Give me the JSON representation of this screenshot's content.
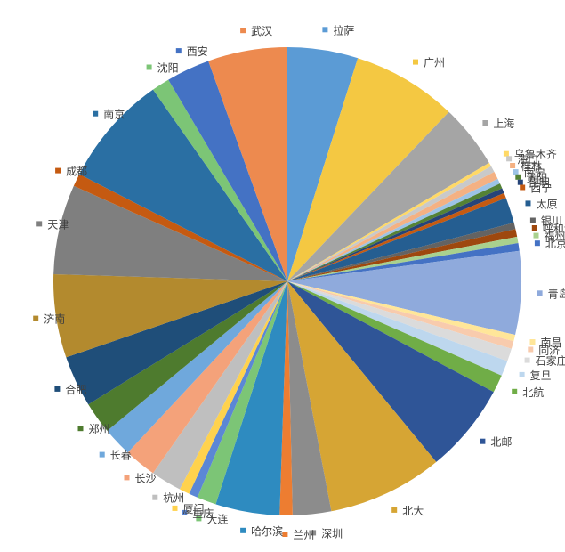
{
  "chart_data": {
    "type": "pie",
    "title": "",
    "legend": "labels-around-pie",
    "categories": [
      "拉萨",
      "广州",
      "上海",
      "乌鲁木齐",
      "海口",
      "桂林",
      "南宁",
      "贵阳",
      "昆明",
      "西宁",
      "太原",
      "银川",
      "呼和浩特",
      "福州",
      "北京",
      "青岛",
      "南昌",
      "同济",
      "石家庄",
      "复旦",
      "北航",
      "北邮",
      "北大",
      "深圳",
      "兰州",
      "哈尔滨",
      "大连",
      "重庆",
      "厦门",
      "杭州",
      "长沙",
      "长春",
      "郑州",
      "合肥",
      "济南",
      "天津",
      "成都",
      "南京",
      "沈阳",
      "西安",
      "武汉"
    ],
    "values": [
      5.5,
      8.2,
      5.0,
      0.3,
      0.5,
      0.6,
      0.4,
      0.4,
      0.4,
      0.4,
      2.0,
      0.5,
      0.6,
      0.5,
      0.6,
      6.5,
      0.5,
      0.6,
      1.0,
      1.2,
      1.4,
      7.0,
      9.0,
      3.0,
      1.0,
      5.0,
      1.5,
      0.7,
      0.8,
      2.4,
      2.5,
      2.3,
      2.5,
      4.0,
      6.5,
      7.0,
      1.0,
      8.7,
      1.4,
      3.4,
      6.2
    ],
    "colors": [
      "#5B9BD5",
      "#F4C842",
      "#A5A5A5",
      "#FFD966",
      "#C9C9C9",
      "#F4B183",
      "#9DC3E6",
      "#548235",
      "#264478",
      "#C55A11",
      "#255E91",
      "#636363",
      "#9E480E",
      "#A9D18E",
      "#4472C4",
      "#8FAADC",
      "#FFE699",
      "#F8CBAD",
      "#DBDBDB",
      "#BDD7EE",
      "#70AD47",
      "#2F5597",
      "#D6A534",
      "#8C8C8C",
      "#ED7D31",
      "#2E8BC0",
      "#7CC576",
      "#5B87D5",
      "#FFD24D",
      "#BFBFBF",
      "#F4A27A",
      "#6FA8DC",
      "#4E7B2E",
      "#1F4E79",
      "#B38A2E",
      "#7F7F7F",
      "#C55A11",
      "#2A6FA3",
      "#7CC576",
      "#4472C4",
      "#ED8A4F"
    ]
  }
}
